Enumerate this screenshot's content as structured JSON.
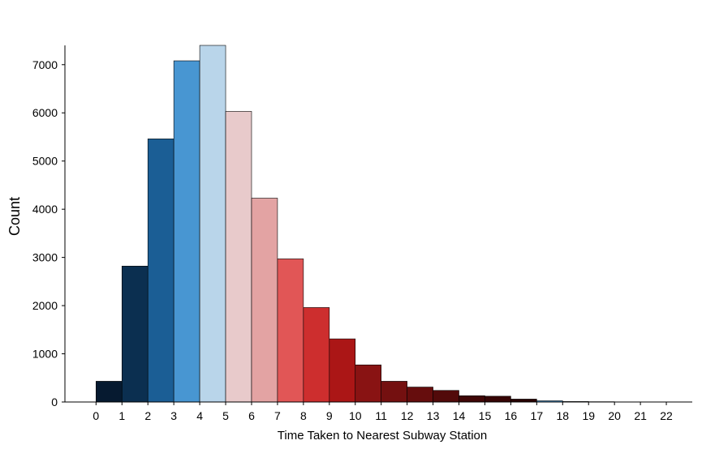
{
  "chart_data": {
    "type": "bar",
    "title": "",
    "xlabel": "Time Taken to Nearest Subway Station",
    "ylabel": "Count",
    "xlim": [
      -1.2,
      23.0
    ],
    "ylim": [
      0,
      7400
    ],
    "grid": false,
    "x_ticks": [
      0,
      1,
      2,
      3,
      4,
      5,
      6,
      7,
      8,
      9,
      10,
      11,
      12,
      13,
      14,
      15,
      16,
      17,
      18,
      19,
      20,
      21,
      22
    ],
    "y_ticks": [
      0,
      1000,
      2000,
      3000,
      4000,
      5000,
      6000,
      7000
    ],
    "bars": [
      {
        "x0": 0,
        "x1": 1,
        "value": 430,
        "color": "#061a30"
      },
      {
        "x0": 1,
        "x1": 2,
        "value": 2820,
        "color": "#0b2f50"
      },
      {
        "x0": 2,
        "x1": 3,
        "value": 5460,
        "color": "#1b5e95"
      },
      {
        "x0": 3,
        "x1": 4,
        "value": 7080,
        "color": "#4896d2"
      },
      {
        "x0": 4,
        "x1": 5,
        "value": 7400,
        "color": "#b9d5ea"
      },
      {
        "x0": 5,
        "x1": 6,
        "value": 6030,
        "color": "#e8cacb"
      },
      {
        "x0": 6,
        "x1": 7,
        "value": 4230,
        "color": "#e3a3a3"
      },
      {
        "x0": 7,
        "x1": 8,
        "value": 2970,
        "color": "#e15656"
      },
      {
        "x0": 8,
        "x1": 9,
        "value": 1960,
        "color": "#cd2e2e"
      },
      {
        "x0": 9,
        "x1": 10,
        "value": 1310,
        "color": "#ab1616"
      },
      {
        "x0": 10,
        "x1": 11,
        "value": 770,
        "color": "#891313"
      },
      {
        "x0": 11,
        "x1": 12,
        "value": 430,
        "color": "#741010"
      },
      {
        "x0": 12,
        "x1": 13,
        "value": 310,
        "color": "#660d0d"
      },
      {
        "x0": 13,
        "x1": 14,
        "value": 240,
        "color": "#520a0a"
      },
      {
        "x0": 14,
        "x1": 15,
        "value": 130,
        "color": "#400606"
      },
      {
        "x0": 15,
        "x1": 16,
        "value": 120,
        "color": "#360505"
      },
      {
        "x0": 16,
        "x1": 17,
        "value": 60,
        "color": "#280303"
      },
      {
        "x0": 17,
        "x1": 18,
        "value": 25,
        "color": "#4896d2"
      },
      {
        "x0": 18,
        "x1": 19,
        "value": 10,
        "color": "#b9d5ea"
      },
      {
        "x0": 19,
        "x1": 20,
        "value": 6,
        "color": "#e8cacb"
      },
      {
        "x0": 20,
        "x1": 21,
        "value": 3,
        "color": "#e3a3a3"
      }
    ]
  }
}
